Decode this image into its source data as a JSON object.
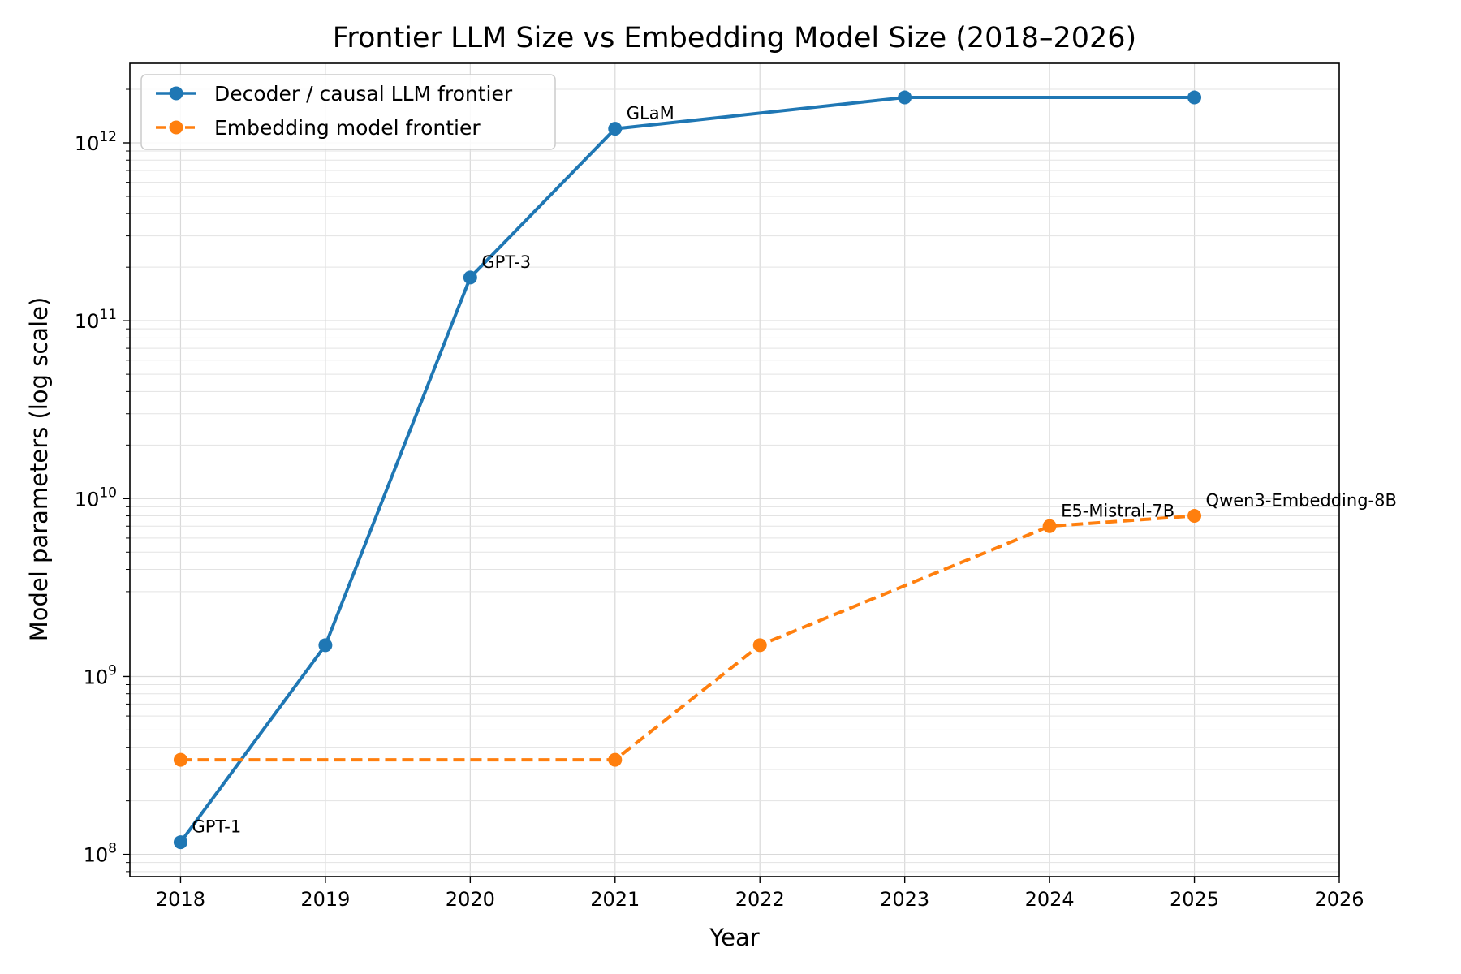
{
  "chart_data": {
    "type": "line",
    "title": "Frontier LLM Size vs Embedding Model Size (2018–2026)",
    "xlabel": "Year",
    "ylabel": "Model parameters (log scale)",
    "yscale": "log",
    "xlim": [
      2017.65,
      2026
    ],
    "ylim": [
      75000000.0,
      2800000000000.0
    ],
    "x_ticks": [
      2018,
      2019,
      2020,
      2021,
      2022,
      2023,
      2024,
      2025,
      2026
    ],
    "x_tick_labels": [
      "2018",
      "2019",
      "2020",
      "2021",
      "2022",
      "2023",
      "2024",
      "2025",
      "2026"
    ],
    "y_ticks": [
      {
        "value": 100000000.0,
        "base": "10",
        "exp": "8"
      },
      {
        "value": 1000000000.0,
        "base": "10",
        "exp": "9"
      },
      {
        "value": 10000000000.0,
        "base": "10",
        "exp": "10"
      },
      {
        "value": 100000000000.0,
        "base": "10",
        "exp": "11"
      },
      {
        "value": 1000000000000.0,
        "base": "10",
        "exp": "12"
      }
    ],
    "grid": true,
    "legend_position": "top-left",
    "series": [
      {
        "name": "Decoder / causal LLM frontier",
        "color": "#1f77b4",
        "line_style": "solid",
        "x": [
          2018,
          2019,
          2020,
          2021,
          2023,
          2025
        ],
        "values": [
          117000000,
          1500000000,
          175000000000,
          1200000000000,
          1800000000000,
          1800000000000
        ]
      },
      {
        "name": "Embedding model frontier",
        "color": "#ff7f0e",
        "line_style": "dashed",
        "x": [
          2018,
          2021,
          2022,
          2024,
          2025
        ],
        "values": [
          340000000,
          340000000,
          1500000000,
          7000000000,
          8000000000
        ]
      }
    ],
    "annotations": [
      {
        "text": "GPT-1",
        "x": 2018,
        "y": 117000000
      },
      {
        "text": "GPT-3",
        "x": 2020,
        "y": 175000000000
      },
      {
        "text": "GLaM",
        "x": 2021,
        "y": 1200000000000
      },
      {
        "text": "E5-Mistral-7B",
        "x": 2024,
        "y": 7000000000
      },
      {
        "text": "Qwen3-Embedding-8B",
        "x": 2025,
        "y": 8000000000
      }
    ]
  }
}
